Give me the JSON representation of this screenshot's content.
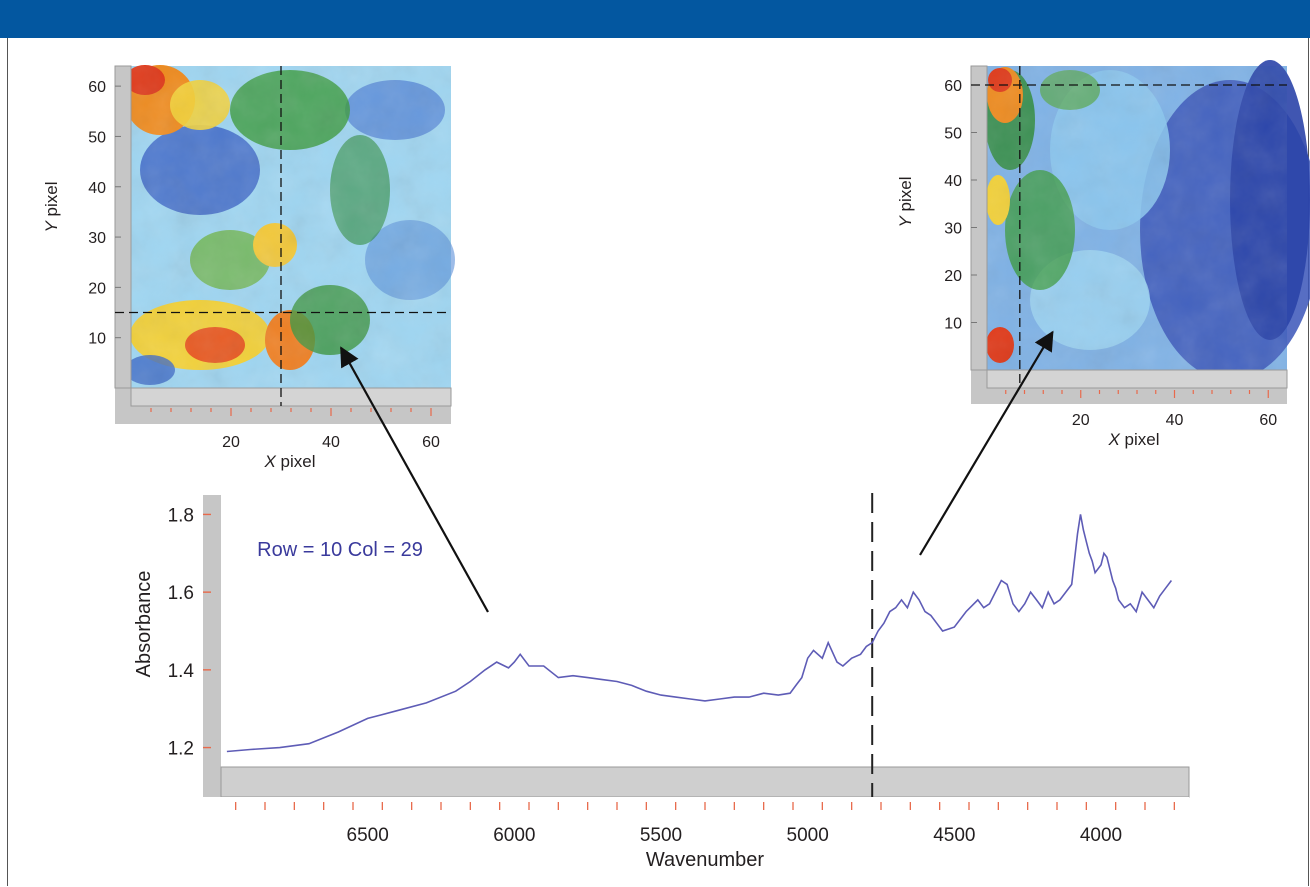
{
  "colors": {
    "header": "#0357a0",
    "panel_gray": "#c6c6c6",
    "spectrum_line": "#5e5cb6",
    "tick_orange": "#e8694b",
    "annotation": "#3a3a9c"
  },
  "chart_data": [
    {
      "type": "heatmap",
      "xlabel_italic": "X",
      "xlabel_rest": " pixel",
      "ylabel_italic": "Y",
      "ylabel_rest": " pixel",
      "xlim": [
        0,
        64
      ],
      "ylim": [
        0,
        64
      ],
      "x_ticks": [
        "20",
        "40",
        "60"
      ],
      "y_ticks": [
        "10",
        "20",
        "30",
        "40",
        "50",
        "60"
      ],
      "crosshair": {
        "x": 30,
        "y": 15
      },
      "pointer_target": {
        "x": 42,
        "y": 8
      }
    },
    {
      "type": "heatmap",
      "xlabel_italic": "X",
      "xlabel_rest": " pixel",
      "ylabel_italic": "Y",
      "ylabel_rest": " pixel",
      "xlim": [
        0,
        64
      ],
      "ylim": [
        0,
        64
      ],
      "x_ticks": [
        "20",
        "40",
        "60"
      ],
      "y_ticks": [
        "10",
        "20",
        "30",
        "40",
        "50",
        "60"
      ],
      "crosshair": {
        "x": 7,
        "y": 60
      },
      "pointer_target": {
        "x": 14,
        "y": 8
      }
    },
    {
      "type": "line",
      "xlabel": "Wavenumber",
      "ylabel": "Absorbance",
      "annotation": "Row = 10 Col = 29",
      "x_reversed": true,
      "xlim": [
        7000,
        3700
      ],
      "ylim": [
        1.15,
        1.85
      ],
      "x_ticks": [
        "6500",
        "6000",
        "5500",
        "5000",
        "4500",
        "4000"
      ],
      "y_ticks": [
        "1.2",
        "1.4",
        "1.6",
        "1.8"
      ],
      "marker_wavenumber": 4780,
      "series": [
        {
          "x": [
            6980,
            6900,
            6800,
            6700,
            6600,
            6500,
            6400,
            6300,
            6200,
            6150,
            6100,
            6060,
            6020,
            6000,
            5980,
            5950,
            5900,
            5850,
            5800,
            5750,
            5700,
            5650,
            5600,
            5550,
            5500,
            5450,
            5400,
            5350,
            5300,
            5250,
            5200,
            5150,
            5100,
            5060,
            5040,
            5020,
            5000,
            4980,
            4950,
            4930,
            4900,
            4880,
            4850,
            4820,
            4800,
            4780,
            4760,
            4740,
            4720,
            4700,
            4680,
            4660,
            4640,
            4620,
            4600,
            4580,
            4560,
            4540,
            4500,
            4460,
            4420,
            4400,
            4380,
            4360,
            4340,
            4320,
            4300,
            4280,
            4260,
            4240,
            4220,
            4200,
            4180,
            4160,
            4140,
            4120,
            4100,
            4080,
            4070,
            4060,
            4050,
            4040,
            4030,
            4020,
            4000,
            3990,
            3980,
            3970,
            3960,
            3950,
            3940,
            3920,
            3900,
            3880,
            3860,
            3840,
            3820,
            3800,
            3780,
            3760
          ],
          "y": [
            1.19,
            1.195,
            1.2,
            1.21,
            1.24,
            1.275,
            1.295,
            1.315,
            1.345,
            1.37,
            1.4,
            1.42,
            1.405,
            1.42,
            1.44,
            1.41,
            1.41,
            1.38,
            1.385,
            1.38,
            1.375,
            1.37,
            1.36,
            1.345,
            1.335,
            1.33,
            1.325,
            1.32,
            1.325,
            1.33,
            1.33,
            1.34,
            1.335,
            1.34,
            1.36,
            1.38,
            1.43,
            1.45,
            1.43,
            1.47,
            1.42,
            1.41,
            1.43,
            1.44,
            1.46,
            1.47,
            1.5,
            1.52,
            1.55,
            1.56,
            1.58,
            1.56,
            1.6,
            1.58,
            1.55,
            1.54,
            1.52,
            1.5,
            1.51,
            1.55,
            1.58,
            1.56,
            1.57,
            1.6,
            1.63,
            1.62,
            1.57,
            1.55,
            1.57,
            1.6,
            1.58,
            1.56,
            1.6,
            1.57,
            1.58,
            1.6,
            1.62,
            1.75,
            1.8,
            1.76,
            1.73,
            1.7,
            1.68,
            1.65,
            1.67,
            1.7,
            1.69,
            1.66,
            1.63,
            1.61,
            1.58,
            1.56,
            1.57,
            1.55,
            1.6,
            1.58,
            1.56,
            1.59,
            1.61,
            1.63
          ]
        }
      ]
    }
  ]
}
